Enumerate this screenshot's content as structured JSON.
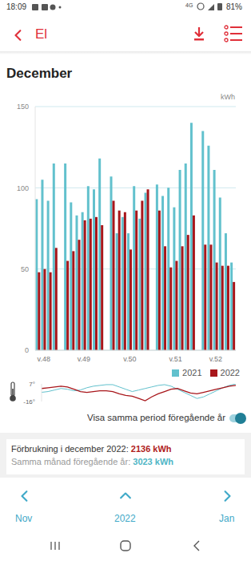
{
  "screen": {
    "status_bar": {
      "time": "18:09",
      "network": "4G",
      "battery": "81%"
    },
    "header": {
      "title": "El"
    },
    "toggle": {
      "label": "Visa samma period föregående år",
      "on": true
    },
    "summary": {
      "current": {
        "label": "Förbrukning i december 2022:",
        "value": "2136 kWh"
      },
      "previous": {
        "label": "Samma månad föregående år:",
        "value": "3023 kWh"
      }
    },
    "navigation": {
      "previous": "Nov",
      "current": "2022",
      "next": "Jan"
    }
  },
  "chart_data": [
    {
      "type": "bar",
      "title": "December",
      "y_label": "kWh",
      "categories": [
        null,
        "v.48",
        null,
        null,
        null,
        null,
        null,
        null,
        "v.49",
        null,
        null,
        null,
        null,
        null,
        null,
        null,
        "v.50",
        null,
        null,
        null,
        null,
        null,
        null,
        null,
        "v.51",
        null,
        null,
        null,
        null,
        null,
        null,
        "v.52",
        null,
        null,
        null
      ],
      "series": [
        {
          "name": "2021",
          "color": "#62c1cd",
          "values": [
            93,
            105,
            92,
            115,
            null,
            115,
            91,
            83,
            85,
            101,
            99,
            118,
            null,
            107,
            72,
            82,
            72,
            101,
            81,
            97,
            null,
            102,
            95,
            100,
            88,
            111,
            115,
            140,
            null,
            135,
            126,
            111,
            94,
            72,
            54
          ]
        },
        {
          "name": "2022",
          "color": "#a8161b",
          "values": [
            48,
            50,
            48,
            63,
            null,
            55,
            61,
            68,
            80,
            81,
            82,
            77,
            null,
            92,
            86,
            85,
            62,
            86,
            92,
            99,
            null,
            86,
            64,
            51,
            55,
            64,
            71,
            83,
            null,
            65,
            65,
            54,
            52,
            52,
            42
          ]
        }
      ],
      "ylim": [
        0,
        150
      ],
      "yticks": [
        0,
        50,
        100,
        150
      ],
      "grid": true,
      "legend": "bottom"
    },
    {
      "type": "line",
      "series": [
        {
          "name": "2021",
          "color": "#62c1cd",
          "values": [
            -4,
            -3,
            -1,
            1,
            0,
            -2,
            -1,
            2,
            4,
            5,
            6,
            6,
            3,
            0,
            -3,
            -1,
            1,
            3,
            5,
            6,
            4,
            0,
            -4,
            -8,
            -12,
            -10,
            -6,
            -2,
            2,
            5,
            7
          ]
        },
        {
          "name": "2022",
          "color": "#a8161b",
          "values": [
            1,
            2,
            3,
            4,
            3,
            0,
            -3,
            -4,
            -3,
            -2,
            -2,
            -3,
            -6,
            -8,
            -9,
            -12,
            -15,
            -10,
            -6,
            -3,
            0,
            1,
            -2,
            -5,
            -6,
            -4,
            -2,
            0,
            2,
            4,
            5
          ]
        }
      ],
      "ylim": [
        -16,
        7
      ],
      "yticks": [
        {
          "value": 7,
          "label": "7°"
        },
        {
          "value": -16,
          "label": "-16°"
        }
      ]
    }
  ]
}
